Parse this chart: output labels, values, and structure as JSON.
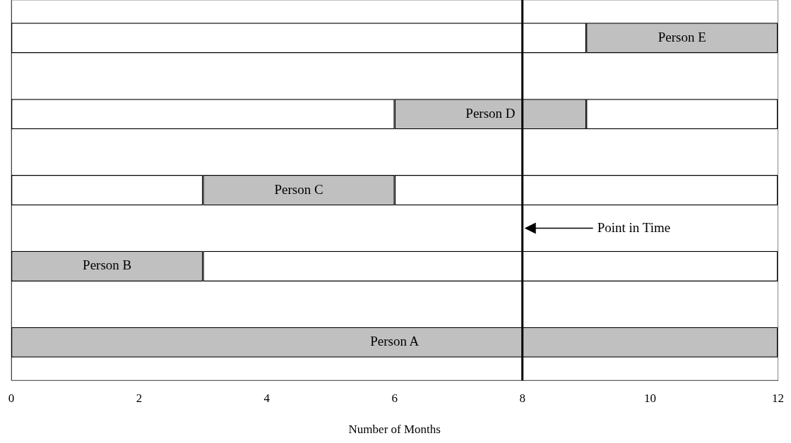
{
  "chart_data": {
    "type": "bar",
    "orientation": "horizontal",
    "stacked": true,
    "xlabel": "Number of Months",
    "categories": [
      null,
      null,
      null,
      null,
      null
    ],
    "series": [
      {
        "color": "#ffffff",
        "values": [
          9,
          6,
          3,
          0,
          0
        ]
      },
      {
        "color": "#c0c0c0",
        "values": [
          3,
          3,
          3,
          3,
          12
        ],
        "value_labels": [
          "Person E",
          "Person D",
          "Person C",
          "Person B",
          "Person A"
        ]
      },
      {
        "color": "#ffffff",
        "values": [
          0,
          3,
          6,
          9,
          0
        ]
      }
    ],
    "xlim": [
      0,
      12
    ],
    "xticks": [
      0,
      2,
      4,
      6,
      8,
      10,
      12
    ],
    "ref_lines": [
      {
        "axis": "x",
        "value": 8,
        "label": "Point in Time",
        "color": "#000000"
      }
    ],
    "grid": false,
    "legend": false,
    "tick_labels": "x"
  }
}
